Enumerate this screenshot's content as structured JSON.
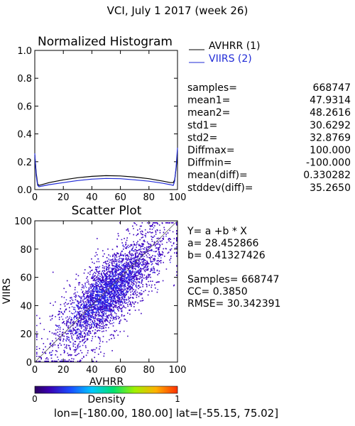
{
  "title": "VCI,  July 1 2017 (week 26)",
  "colors": {
    "avhrr": "#000000",
    "viirs": "#1f2ad6",
    "axis": "#000000"
  },
  "histogram": {
    "title": "Normalized Histogram",
    "xlim": [
      0,
      100
    ],
    "ylim": [
      0,
      1.0
    ],
    "xticks": [
      "0",
      "20",
      "40",
      "60",
      "80",
      "100"
    ],
    "yticks": [
      "0.0",
      "0.2",
      "0.4",
      "0.6",
      "0.8",
      "1.0"
    ],
    "legend": [
      {
        "name": "AVHRR (1)",
        "color": "#000000"
      },
      {
        "name": "VIIRS (2)",
        "color": "#1f2ad6"
      }
    ],
    "stats": [
      {
        "label": "samples=",
        "value": "668747"
      },
      {
        "label": "mean1=",
        "value": "47.9314"
      },
      {
        "label": "mean2=",
        "value": "48.2616"
      },
      {
        "label": "std1=",
        "value": "30.6292"
      },
      {
        "label": "std2=",
        "value": "32.8769"
      },
      {
        "label": "Diffmax=",
        "value": "100.000"
      },
      {
        "label": "Diffmin=",
        "value": "-100.000"
      },
      {
        "label": "mean(diff)=",
        "value": "0.330282"
      },
      {
        "label": "stddev(diff)=",
        "value": "35.2650"
      }
    ]
  },
  "scatter": {
    "title": "Scatter Plot",
    "xlabel": "AVHRR",
    "ylabel": "VIIRS",
    "xlim": [
      0,
      100
    ],
    "ylim": [
      0,
      100
    ],
    "xticks": [
      "0",
      "20",
      "40",
      "60",
      "80",
      "100"
    ],
    "yticks": [
      "0",
      "20",
      "40",
      "60",
      "80",
      "100"
    ],
    "fit_lines": [
      "Y= a +b * X",
      "a= 28.452866",
      "b= 0.41327426"
    ],
    "metrics_lines": [
      "Samples= 668747",
      "CC=  0.3850",
      "RMSE= 30.342391"
    ]
  },
  "colorbar": {
    "min_label": "0",
    "title": "Density",
    "max_label": "1"
  },
  "footer": "lon=[-180.00, 180.00] lat=[-55.15, 75.02]",
  "chart_data": [
    {
      "type": "line",
      "title": "Normalized Histogram",
      "xlim": [
        0,
        100
      ],
      "ylim": [
        0,
        1.0
      ],
      "series": [
        {
          "name": "AVHRR (1)",
          "x": [
            0,
            1,
            2,
            3,
            5,
            10,
            20,
            30,
            40,
            50,
            60,
            70,
            80,
            90,
            95,
            97,
            98,
            99,
            100
          ],
          "y": [
            0.25,
            0.12,
            0.04,
            0.03,
            0.035,
            0.05,
            0.07,
            0.085,
            0.095,
            0.1,
            0.098,
            0.09,
            0.078,
            0.06,
            0.05,
            0.05,
            0.07,
            0.15,
            0.25
          ]
        },
        {
          "name": "VIIRS (2)",
          "x": [
            0,
            1,
            2,
            3,
            5,
            10,
            20,
            30,
            40,
            50,
            60,
            70,
            80,
            90,
            95,
            97,
            98,
            99,
            100
          ],
          "y": [
            0.26,
            0.1,
            0.03,
            0.02,
            0.025,
            0.035,
            0.05,
            0.065,
            0.075,
            0.08,
            0.078,
            0.07,
            0.06,
            0.045,
            0.035,
            0.03,
            0.06,
            0.16,
            0.3
          ]
        }
      ]
    },
    {
      "type": "scatter",
      "title": "Scatter Plot",
      "xlabel": "AVHRR",
      "ylabel": "VIIRS",
      "xlim": [
        0,
        100
      ],
      "ylim": [
        0,
        100
      ],
      "fit": {
        "a": 28.452866,
        "b": 0.41327426
      },
      "samples": 668747,
      "cc": 0.385,
      "rmse": 30.342391
    }
  ]
}
